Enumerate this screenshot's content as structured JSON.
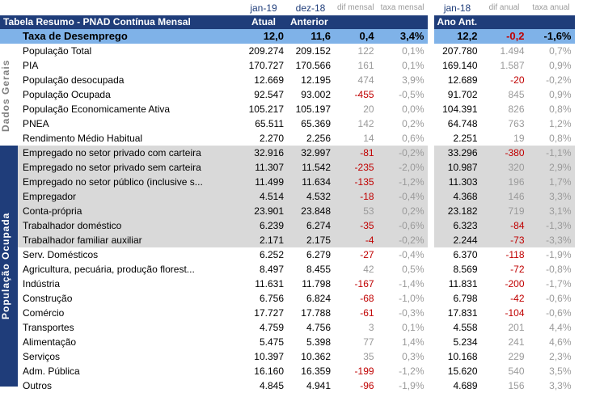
{
  "header": {
    "dates": [
      "jan-19",
      "dez-18",
      "dif mensal",
      "taxa mensal",
      "jan-18",
      "dif anual",
      "taxa anual"
    ],
    "title": "Tabela Resumo - PNAD Contínua Mensal",
    "cols": [
      "Atual",
      "Anterior",
      "Ano Ant."
    ]
  },
  "groups": [
    "Dados Gerais",
    "População Ocupada"
  ],
  "taxa": {
    "label": "Taxa de Desemprego",
    "atual": "12,0",
    "anterior": "11,6",
    "dif_m": "0,4",
    "taxa_m": "3,4%",
    "ano_ant": "12,2",
    "dif_a": "-0,2",
    "taxa_a": "-1,6%"
  },
  "rows": [
    {
      "label": "População Total",
      "atual": "209.274",
      "anterior": "209.152",
      "dif_m": "122",
      "taxa_m": "0,1%",
      "ano_ant": "207.780",
      "dif_a": "1.494",
      "taxa_a": "0,7%"
    },
    {
      "label": "PIA",
      "atual": "170.727",
      "anterior": "170.566",
      "dif_m": "161",
      "taxa_m": "0,1%",
      "ano_ant": "169.140",
      "dif_a": "1.587",
      "taxa_a": "0,9%"
    },
    {
      "label": "População desocupada",
      "atual": "12.669",
      "anterior": "12.195",
      "dif_m": "474",
      "taxa_m": "3,9%",
      "ano_ant": "12.689",
      "dif_a": "-20",
      "taxa_a": "-0,2%"
    },
    {
      "label": "População Ocupada",
      "atual": "92.547",
      "anterior": "93.002",
      "dif_m": "-455",
      "taxa_m": "-0,5%",
      "ano_ant": "91.702",
      "dif_a": "845",
      "taxa_a": "0,9%"
    },
    {
      "label": "População Economicamente Ativa",
      "atual": "105.217",
      "anterior": "105.197",
      "dif_m": "20",
      "taxa_m": "0,0%",
      "ano_ant": "104.391",
      "dif_a": "826",
      "taxa_a": "0,8%"
    },
    {
      "label": "PNEA",
      "atual": "65.511",
      "anterior": "65.369",
      "dif_m": "142",
      "taxa_m": "0,2%",
      "ano_ant": "64.748",
      "dif_a": "763",
      "taxa_a": "1,2%"
    },
    {
      "label": "Rendimento Médio Habitual",
      "atual": "2.270",
      "anterior": "2.256",
      "dif_m": "14",
      "taxa_m": "0,6%",
      "ano_ant": "2.251",
      "dif_a": "19",
      "taxa_a": "0,8%"
    },
    {
      "label": "Empregado no setor privado com carteira",
      "atual": "32.916",
      "anterior": "32.997",
      "dif_m": "-81",
      "taxa_m": "-0,2%",
      "ano_ant": "33.296",
      "dif_a": "-380",
      "taxa_a": "-1,1%"
    },
    {
      "label": "Empregado no setor privado sem carteira",
      "atual": "11.307",
      "anterior": "11.542",
      "dif_m": "-235",
      "taxa_m": "-2,0%",
      "ano_ant": "10.987",
      "dif_a": "320",
      "taxa_a": "2,9%"
    },
    {
      "label": "Empregado no setor público (inclusive s...",
      "atual": "11.499",
      "anterior": "11.634",
      "dif_m": "-135",
      "taxa_m": "-1,2%",
      "ano_ant": "11.303",
      "dif_a": "196",
      "taxa_a": "1,7%"
    },
    {
      "label": "Empregador",
      "atual": "4.514",
      "anterior": "4.532",
      "dif_m": "-18",
      "taxa_m": "-0,4%",
      "ano_ant": "4.368",
      "dif_a": "146",
      "taxa_a": "3,3%"
    },
    {
      "label": "Conta-própria",
      "atual": "23.901",
      "anterior": "23.848",
      "dif_m": "53",
      "taxa_m": "0,2%",
      "ano_ant": "23.182",
      "dif_a": "719",
      "taxa_a": "3,1%"
    },
    {
      "label": "Trabalhador doméstico",
      "atual": "6.239",
      "anterior": "6.274",
      "dif_m": "-35",
      "taxa_m": "-0,6%",
      "ano_ant": "6.323",
      "dif_a": "-84",
      "taxa_a": "-1,3%"
    },
    {
      "label": "Trabalhador familiar auxiliar",
      "atual": "2.171",
      "anterior": "2.175",
      "dif_m": "-4",
      "taxa_m": "-0,2%",
      "ano_ant": "2.244",
      "dif_a": "-73",
      "taxa_a": "-3,3%"
    },
    {
      "label": "Serv. Domésticos",
      "atual": "6.252",
      "anterior": "6.279",
      "dif_m": "-27",
      "taxa_m": "-0,4%",
      "ano_ant": "6.370",
      "dif_a": "-118",
      "taxa_a": "-1,9%"
    },
    {
      "label": "Agricultura, pecuária, produção florest...",
      "atual": "8.497",
      "anterior": "8.455",
      "dif_m": "42",
      "taxa_m": "0,5%",
      "ano_ant": "8.569",
      "dif_a": "-72",
      "taxa_a": "-0,8%"
    },
    {
      "label": "Indústria",
      "atual": "11.631",
      "anterior": "11.798",
      "dif_m": "-167",
      "taxa_m": "-1,4%",
      "ano_ant": "11.831",
      "dif_a": "-200",
      "taxa_a": "-1,7%"
    },
    {
      "label": "Construção",
      "atual": "6.756",
      "anterior": "6.824",
      "dif_m": "-68",
      "taxa_m": "-1,0%",
      "ano_ant": "6.798",
      "dif_a": "-42",
      "taxa_a": "-0,6%"
    },
    {
      "label": "Comércio",
      "atual": "17.727",
      "anterior": "17.788",
      "dif_m": "-61",
      "taxa_m": "-0,3%",
      "ano_ant": "17.831",
      "dif_a": "-104",
      "taxa_a": "-0,6%"
    },
    {
      "label": "Transportes",
      "atual": "4.759",
      "anterior": "4.756",
      "dif_m": "3",
      "taxa_m": "0,1%",
      "ano_ant": "4.558",
      "dif_a": "201",
      "taxa_a": "4,4%"
    },
    {
      "label": "Alimentação",
      "atual": "5.475",
      "anterior": "5.398",
      "dif_m": "77",
      "taxa_m": "1,4%",
      "ano_ant": "5.234",
      "dif_a": "241",
      "taxa_a": "4,6%"
    },
    {
      "label": "Serviços",
      "atual": "10.397",
      "anterior": "10.362",
      "dif_m": "35",
      "taxa_m": "0,3%",
      "ano_ant": "10.168",
      "dif_a": "229",
      "taxa_a": "2,3%"
    },
    {
      "label": "Adm. Pública",
      "atual": "16.160",
      "anterior": "16.359",
      "dif_m": "-199",
      "taxa_m": "-1,2%",
      "ano_ant": "15.620",
      "dif_a": "540",
      "taxa_a": "3,5%"
    },
    {
      "label": "Outros",
      "atual": "4.845",
      "anterior": "4.941",
      "dif_m": "-96",
      "taxa_m": "-1,9%",
      "ano_ant": "4.689",
      "dif_a": "156",
      "taxa_a": "3,3%"
    }
  ],
  "colors": {
    "header_bg": "#1f3d7a",
    "highlight_bg": "#7fb2e8",
    "shade_bg": "#d9d9d9",
    "negative": "#c00000",
    "positive_muted": "#9a9a9a"
  }
}
